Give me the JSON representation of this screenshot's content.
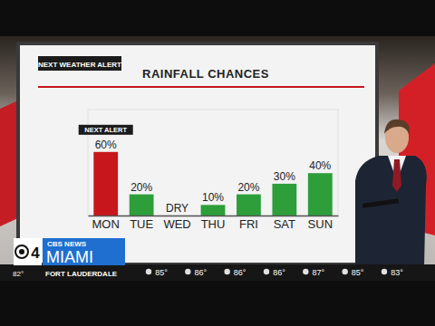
{
  "chart_data": {
    "type": "bar",
    "title": "RAINFALL CHANCES",
    "annotations": [
      "NEXT WEATHER ALERT",
      "NEXT ALERT"
    ],
    "categories": [
      "MON",
      "TUE",
      "WED",
      "THU",
      "FRI",
      "SAT",
      "SUN"
    ],
    "values": [
      60,
      20,
      0,
      10,
      20,
      30,
      40
    ],
    "value_labels": [
      "60%",
      "20%",
      "DRY",
      "10%",
      "20%",
      "30%",
      "40%"
    ],
    "colors": [
      "#c8161d",
      "#2e9e3a",
      "#2e9e3a",
      "#2e9e3a",
      "#2e9e3a",
      "#2e9e3a",
      "#2e9e3a"
    ],
    "ylim": [
      0,
      100
    ],
    "data_labels": true,
    "tick_labels": "x"
  },
  "broadcast": {
    "channel": "4",
    "network": "CBS NEWS",
    "station": "MIAMI",
    "location": "FORT LAUDERDALE",
    "current_temperature": "82°",
    "forecast_temperatures": [
      "85°",
      "86°",
      "86°",
      "86°",
      "87°",
      "85°",
      "83°"
    ]
  }
}
